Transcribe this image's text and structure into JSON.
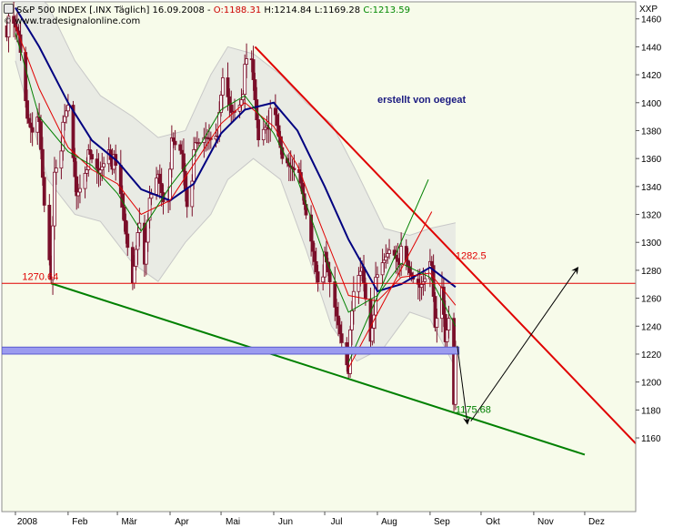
{
  "header": {
    "instrument": "S&P 500 INDEX [.INX  Täglich]",
    "date": "16.09.2008",
    "open": "O:1188.31",
    "high": "H:1214.84",
    "low": "L:1169.28",
    "close": "C:1213.59",
    "copyright": "©",
    "site": "www.tradesignalonline.com",
    "axis_unit": "XXP"
  },
  "colors": {
    "plot_bg": "#f7fbea",
    "band": "#e4e6e2",
    "candle": "#7a0f2a",
    "ma_blue": "#000080",
    "ma_red": "#e00000",
    "ma_green": "#008000",
    "resistance": "#ff0000",
    "support": "#008000",
    "zone": "#9b9bef"
  },
  "annotations": {
    "author": "erstellt von oegeat",
    "level_left": "1270.64",
    "level_right": "1282.5",
    "target": "1175.68"
  },
  "chart_data": {
    "type": "candlestick",
    "title": "S&P 500 INDEX [.INX  Täglich]",
    "ylim": [
      1148,
      1470
    ],
    "y_ticks": [
      1160,
      1180,
      1200,
      1220,
      1240,
      1260,
      1280,
      1300,
      1320,
      1340,
      1360,
      1380,
      1400,
      1420,
      1440,
      1460
    ],
    "x_range": [
      "2007-12-24",
      "2008-12-31"
    ],
    "x_ticks": [
      {
        "label": "2008",
        "date": "2008-01-01"
      },
      {
        "label": "Feb",
        "date": "2008-02-01"
      },
      {
        "label": "Mär",
        "date": "2008-03-01"
      },
      {
        "label": "Apr",
        "date": "2008-04-01"
      },
      {
        "label": "Mai",
        "date": "2008-05-01"
      },
      {
        "label": "Jun",
        "date": "2008-06-01"
      },
      {
        "label": "Jul",
        "date": "2008-07-01"
      },
      {
        "label": "Aug",
        "date": "2008-08-01"
      },
      {
        "label": "Sep",
        "date": "2008-09-01"
      },
      {
        "label": "Okt",
        "date": "2008-10-01"
      },
      {
        "label": "Nov",
        "date": "2008-11-01"
      },
      {
        "label": "Dez",
        "date": "2008-12-01"
      }
    ],
    "grid": false,
    "close_path": [
      [
        "2007-12-27",
        1455
      ],
      [
        "2008-01-03",
        1447
      ],
      [
        "2008-01-08",
        1392
      ],
      [
        "2008-01-15",
        1380
      ],
      [
        "2008-01-18",
        1325
      ],
      [
        "2008-01-22",
        1275
      ],
      [
        "2008-01-24",
        1355
      ],
      [
        "2008-01-29",
        1378
      ],
      [
        "2008-02-01",
        1395
      ],
      [
        "2008-02-06",
        1335
      ],
      [
        "2008-02-12",
        1360
      ],
      [
        "2008-02-19",
        1348
      ],
      [
        "2008-02-25",
        1371
      ],
      [
        "2008-02-28",
        1355
      ],
      [
        "2008-03-03",
        1330
      ],
      [
        "2008-03-07",
        1298
      ],
      [
        "2008-03-10",
        1274
      ],
      [
        "2008-03-13",
        1315
      ],
      [
        "2008-03-17",
        1278
      ],
      [
        "2008-03-20",
        1330
      ],
      [
        "2008-03-25",
        1352
      ],
      [
        "2008-03-31",
        1322
      ],
      [
        "2008-04-02",
        1370
      ],
      [
        "2008-04-08",
        1365
      ],
      [
        "2008-04-11",
        1332
      ],
      [
        "2008-04-16",
        1365
      ],
      [
        "2008-04-22",
        1375
      ],
      [
        "2008-04-30",
        1385
      ],
      [
        "2008-05-02",
        1413
      ],
      [
        "2008-05-07",
        1393
      ],
      [
        "2008-05-12",
        1403
      ],
      [
        "2008-05-16",
        1425
      ],
      [
        "2008-05-19",
        1426
      ],
      [
        "2008-05-23",
        1375
      ],
      [
        "2008-05-28",
        1390
      ],
      [
        "2008-06-02",
        1385
      ],
      [
        "2008-06-06",
        1360
      ],
      [
        "2008-06-10",
        1358
      ],
      [
        "2008-06-13",
        1360
      ],
      [
        "2008-06-20",
        1318
      ],
      [
        "2008-06-27",
        1278
      ],
      [
        "2008-07-01",
        1285
      ],
      [
        "2008-07-07",
        1252
      ],
      [
        "2008-07-15",
        1214
      ],
      [
        "2008-07-18",
        1260
      ],
      [
        "2008-07-23",
        1282
      ],
      [
        "2008-07-28",
        1234
      ],
      [
        "2008-07-31",
        1267
      ],
      [
        "2008-08-05",
        1284
      ],
      [
        "2008-08-08",
        1296
      ],
      [
        "2008-08-14",
        1292
      ],
      [
        "2008-08-20",
        1275
      ],
      [
        "2008-08-26",
        1271
      ],
      [
        "2008-08-29",
        1282
      ],
      [
        "2008-09-02",
        1277
      ],
      [
        "2008-09-04",
        1236
      ],
      [
        "2008-09-08",
        1268
      ],
      [
        "2008-09-10",
        1232
      ],
      [
        "2008-09-12",
        1252
      ],
      [
        "2008-09-15",
        1192
      ],
      [
        "2008-09-16",
        1213.59
      ]
    ],
    "moving_averages": [
      {
        "color": "blue",
        "values": [
          [
            "2008-01-01",
            1468
          ],
          [
            "2008-01-15",
            1440
          ],
          [
            "2008-02-01",
            1400
          ],
          [
            "2008-02-15",
            1373
          ],
          [
            "2008-03-01",
            1358
          ],
          [
            "2008-03-15",
            1338
          ],
          [
            "2008-04-01",
            1330
          ],
          [
            "2008-04-15",
            1342
          ],
          [
            "2008-05-01",
            1378
          ],
          [
            "2008-05-15",
            1395
          ],
          [
            "2008-06-01",
            1400
          ],
          [
            "2008-06-15",
            1380
          ],
          [
            "2008-07-01",
            1340
          ],
          [
            "2008-07-15",
            1302
          ],
          [
            "2008-08-01",
            1265
          ],
          [
            "2008-08-15",
            1270
          ],
          [
            "2008-09-01",
            1282
          ],
          [
            "2008-09-16",
            1268
          ]
        ]
      },
      {
        "color": "red",
        "values": [
          [
            "2008-01-01",
            1455
          ],
          [
            "2008-01-15",
            1410
          ],
          [
            "2008-02-01",
            1368
          ],
          [
            "2008-02-15",
            1352
          ],
          [
            "2008-03-01",
            1342
          ],
          [
            "2008-03-15",
            1320
          ],
          [
            "2008-04-01",
            1330
          ],
          [
            "2008-04-15",
            1356
          ],
          [
            "2008-05-01",
            1385
          ],
          [
            "2008-05-15",
            1400
          ],
          [
            "2008-06-01",
            1383
          ],
          [
            "2008-06-15",
            1355
          ],
          [
            "2008-07-01",
            1305
          ],
          [
            "2008-07-15",
            1262
          ],
          [
            "2008-08-01",
            1258
          ],
          [
            "2008-08-15",
            1275
          ],
          [
            "2008-09-01",
            1278
          ],
          [
            "2008-09-16",
            1255
          ]
        ]
      },
      {
        "color": "green",
        "values": [
          [
            "2008-01-01",
            1450
          ],
          [
            "2008-01-15",
            1390
          ],
          [
            "2008-02-01",
            1365
          ],
          [
            "2008-02-15",
            1355
          ],
          [
            "2008-03-01",
            1335
          ],
          [
            "2008-03-15",
            1308
          ],
          [
            "2008-04-01",
            1340
          ],
          [
            "2008-04-15",
            1362
          ],
          [
            "2008-05-01",
            1395
          ],
          [
            "2008-05-15",
            1405
          ],
          [
            "2008-06-01",
            1378
          ],
          [
            "2008-06-15",
            1345
          ],
          [
            "2008-07-01",
            1290
          ],
          [
            "2008-07-15",
            1250
          ],
          [
            "2008-08-01",
            1262
          ],
          [
            "2008-08-15",
            1285
          ],
          [
            "2008-09-01",
            1275
          ],
          [
            "2008-09-16",
            1240
          ]
        ]
      }
    ],
    "band": {
      "upper": [
        [
          "2008-01-01",
          1490
        ],
        [
          "2008-01-20",
          1470
        ],
        [
          "2008-02-05",
          1430
        ],
        [
          "2008-02-20",
          1405
        ],
        [
          "2008-03-10",
          1390
        ],
        [
          "2008-03-25",
          1375
        ],
        [
          "2008-04-10",
          1380
        ],
        [
          "2008-04-25",
          1420
        ],
        [
          "2008-05-05",
          1440
        ],
        [
          "2008-05-20",
          1435
        ],
        [
          "2008-06-05",
          1420
        ],
        [
          "2008-06-20",
          1400
        ],
        [
          "2008-07-05",
          1385
        ],
        [
          "2008-07-20",
          1350
        ],
        [
          "2008-08-05",
          1310
        ],
        [
          "2008-08-20",
          1305
        ],
        [
          "2008-09-01",
          1310
        ],
        [
          "2008-09-16",
          1314
        ]
      ],
      "lower": [
        [
          "2008-01-01",
          1430
        ],
        [
          "2008-01-20",
          1345
        ],
        [
          "2008-02-05",
          1320
        ],
        [
          "2008-02-20",
          1315
        ],
        [
          "2008-03-10",
          1285
        ],
        [
          "2008-03-25",
          1272
        ],
        [
          "2008-04-10",
          1300
        ],
        [
          "2008-04-25",
          1320
        ],
        [
          "2008-05-05",
          1345
        ],
        [
          "2008-05-20",
          1360
        ],
        [
          "2008-06-05",
          1345
        ],
        [
          "2008-06-20",
          1295
        ],
        [
          "2008-07-05",
          1240
        ],
        [
          "2008-07-20",
          1215
        ],
        [
          "2008-08-05",
          1225
        ],
        [
          "2008-08-20",
          1250
        ],
        [
          "2008-09-01",
          1245
        ],
        [
          "2008-09-16",
          1210
        ]
      ]
    },
    "lines": [
      {
        "name": "resistance",
        "color": "red",
        "from": [
          "2008-05-21",
          1440
        ],
        "to": [
          "2008-12-31",
          1156
        ]
      },
      {
        "name": "support",
        "color": "green",
        "from": [
          "2008-01-22",
          1270.64
        ],
        "to": [
          "2008-12-01",
          1148
        ]
      },
      {
        "name": "horizontal",
        "color": "red",
        "y": 1270.64
      },
      {
        "name": "triangle-upper",
        "color": "green",
        "from": [
          "2008-07-15",
          1214
        ],
        "to": [
          "2008-08-31",
          1345
        ]
      },
      {
        "name": "triangle-lower",
        "color": "red",
        "from": [
          "2008-07-15",
          1210
        ],
        "to": [
          "2008-09-02",
          1322
        ]
      }
    ],
    "zone": {
      "y_from": 1220,
      "y_to": 1225
    },
    "arrows": [
      {
        "from": [
          "2008-09-17",
          1226
        ],
        "to": [
          "2008-09-23",
          1170
        ]
      },
      {
        "from": [
          "2008-09-25",
          1172
        ],
        "to": [
          "2008-11-27",
          1282
        ]
      }
    ],
    "labels": [
      {
        "text": "1270.64",
        "at": [
          "2008-01-05",
          1273
        ]
      },
      {
        "text": "1282.5",
        "at": [
          "2008-09-16",
          1288
        ]
      },
      {
        "text": "1175.68",
        "at": [
          "2008-09-16",
          1178
        ]
      },
      {
        "text": "erstellt von oegeat",
        "at": [
          "2008-08-01",
          1400
        ]
      }
    ]
  }
}
